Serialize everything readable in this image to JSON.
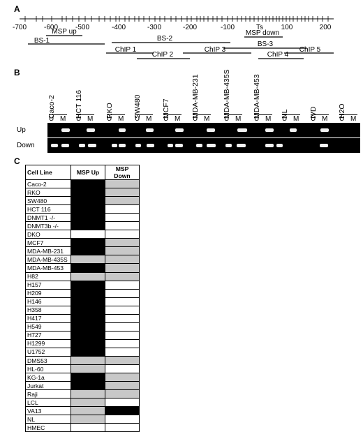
{
  "panel_a": {
    "label": "A",
    "tick_labels": [
      "-700",
      "-600",
      "-500",
      "-400",
      "-300",
      "-200",
      "-100",
      "Ts",
      "100",
      "200"
    ],
    "regions": [
      {
        "label": "MSP up"
      },
      {
        "label": "BS-1"
      },
      {
        "label": "BS-2"
      },
      {
        "label": "MSP down"
      },
      {
        "label": "BS-3"
      },
      {
        "label": "ChIP 1"
      },
      {
        "label": "ChIP 2"
      },
      {
        "label": "ChIP 3"
      },
      {
        "label": "ChIP 4"
      },
      {
        "label": "ChIP 5"
      }
    ]
  },
  "panel_b": {
    "label": "B",
    "lanes": [
      "Caco-2",
      "HCT 116",
      "RKO",
      "SW480",
      "MCF7",
      "MDA-MB-231",
      "MDA-MB-435S",
      "MDA-MB-453",
      "NL",
      "IVD",
      "H2O"
    ],
    "u_label": "U",
    "m_label": "M",
    "rows": [
      "Up",
      "Down"
    ]
  },
  "panel_c": {
    "label": "C",
    "headers": [
      "Cell Line",
      "MSP Up",
      "MSP Down"
    ],
    "colors": {
      "M": "#000000",
      "P": "#c8c8c8",
      "U": "#ffffff"
    },
    "rows": [
      {
        "name": "Caco-2",
        "up": "M",
        "down": "P"
      },
      {
        "name": "RKO",
        "up": "M",
        "down": "P"
      },
      {
        "name": "SW480",
        "up": "M",
        "down": "P"
      },
      {
        "name": "HCT 116",
        "up": "M",
        "down": "U"
      },
      {
        "name": "DNMT1 -/-",
        "up": "M",
        "down": "U"
      },
      {
        "name": "DNMT3b -/-",
        "up": "M",
        "down": "U"
      },
      {
        "name": "DKO",
        "up": "U",
        "down": "U"
      },
      {
        "name": "MCF7",
        "up": "M",
        "down": "P"
      },
      {
        "name": "MDA-MB-231",
        "up": "M",
        "down": "P"
      },
      {
        "name": "MDA-MB-435S",
        "up": "P",
        "down": "P"
      },
      {
        "name": "MDA-MB-453",
        "up": "M",
        "down": "P"
      },
      {
        "name": "H82",
        "up": "P",
        "down": "P"
      },
      {
        "name": "H157",
        "up": "M",
        "down": "U"
      },
      {
        "name": "H209",
        "up": "M",
        "down": "U"
      },
      {
        "name": "H146",
        "up": "M",
        "down": "U"
      },
      {
        "name": "H358",
        "up": "M",
        "down": "U"
      },
      {
        "name": "H417",
        "up": "M",
        "down": "U"
      },
      {
        "name": "H549",
        "up": "M",
        "down": "U"
      },
      {
        "name": "H727",
        "up": "M",
        "down": "U"
      },
      {
        "name": "H1299",
        "up": "M",
        "down": "U"
      },
      {
        "name": "U1752",
        "up": "M",
        "down": "U"
      },
      {
        "name": "DMS53",
        "up": "P",
        "down": "P"
      },
      {
        "name": "HL-60",
        "up": "P",
        "down": "U"
      },
      {
        "name": "KG-1a",
        "up": "M",
        "down": "P"
      },
      {
        "name": "Jurkat",
        "up": "M",
        "down": "P"
      },
      {
        "name": "Raji",
        "up": "P",
        "down": "P"
      },
      {
        "name": "LCL",
        "up": "P",
        "down": "U"
      },
      {
        "name": "VA13",
        "up": "P",
        "down": "M"
      },
      {
        "name": "NL",
        "up": "P",
        "down": "U"
      },
      {
        "name": "HMEC",
        "up": "U",
        "down": "U"
      }
    ]
  }
}
